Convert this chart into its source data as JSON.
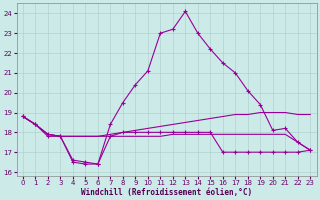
{
  "xlabel": "Windchill (Refroidissement éolien,°C)",
  "background_color": "#cceae7",
  "grid_color": "#aacccc",
  "line_color": "#990099",
  "xlim": [
    -0.5,
    23.5
  ],
  "ylim": [
    15.8,
    24.5
  ],
  "yticks": [
    16,
    17,
    18,
    19,
    20,
    21,
    22,
    23,
    24
  ],
  "xticks": [
    0,
    1,
    2,
    3,
    4,
    5,
    6,
    7,
    8,
    9,
    10,
    11,
    12,
    13,
    14,
    15,
    16,
    17,
    18,
    19,
    20,
    21,
    22,
    23
  ],
  "curve_x": [
    0,
    1,
    2,
    3,
    4,
    5,
    6,
    7,
    8,
    9,
    10,
    11,
    12,
    13,
    14,
    15,
    16,
    17,
    18,
    19,
    20,
    21,
    22,
    23
  ],
  "curve_y": [
    18.8,
    18.4,
    17.9,
    17.8,
    16.6,
    16.5,
    16.4,
    18.4,
    19.5,
    20.4,
    21.1,
    23.0,
    23.2,
    24.1,
    23.0,
    22.2,
    21.5,
    21.0,
    20.1,
    19.4,
    18.1,
    18.2,
    17.5,
    17.1
  ],
  "line1_x": [
    0,
    1,
    2,
    3,
    4,
    5,
    6,
    7,
    8,
    9,
    10,
    11,
    12,
    13,
    14,
    15,
    16,
    17,
    18,
    19,
    20,
    21,
    22,
    23
  ],
  "line1_y": [
    18.8,
    18.4,
    17.9,
    17.8,
    17.8,
    17.8,
    17.8,
    17.9,
    18.0,
    18.1,
    18.2,
    18.3,
    18.4,
    18.5,
    18.6,
    18.7,
    18.8,
    18.9,
    18.9,
    19.0,
    19.0,
    19.0,
    18.9,
    18.9
  ],
  "line2_x": [
    0,
    1,
    2,
    3,
    4,
    5,
    6,
    7,
    8,
    9,
    10,
    11,
    12,
    13,
    14,
    15,
    16,
    17,
    18,
    19,
    20,
    21,
    22,
    23
  ],
  "line2_y": [
    18.8,
    18.4,
    17.9,
    17.8,
    17.8,
    17.8,
    17.8,
    17.8,
    17.8,
    17.8,
    17.8,
    17.8,
    17.9,
    17.9,
    17.9,
    17.9,
    17.9,
    17.9,
    17.9,
    17.9,
    17.9,
    17.9,
    17.5,
    17.1
  ],
  "line3_x": [
    0,
    1,
    2,
    3,
    4,
    5,
    6,
    7,
    8,
    9,
    10,
    11,
    12,
    13,
    14,
    15,
    16,
    17,
    18,
    19,
    20,
    21,
    22,
    23
  ],
  "line3_y": [
    18.8,
    18.4,
    17.8,
    17.8,
    16.5,
    16.4,
    16.4,
    17.8,
    18.0,
    18.0,
    18.0,
    18.0,
    18.0,
    18.0,
    18.0,
    18.0,
    17.0,
    17.0,
    17.0,
    17.0,
    17.0,
    17.0,
    17.0,
    17.1
  ]
}
